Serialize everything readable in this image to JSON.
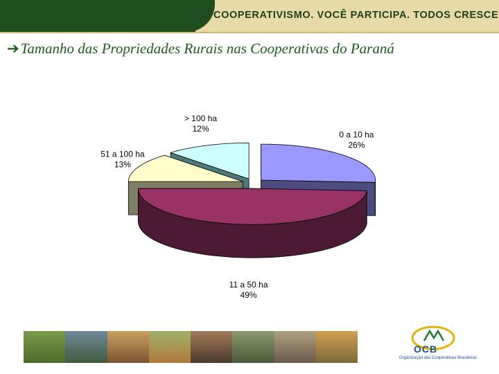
{
  "header": {
    "slogan": "COOPERATIVISMO. VOCÊ PARTICIPA. TODOS CRESCEM."
  },
  "title": {
    "bullet_icon": "arrow-right-icon",
    "text": "Tamanho das Propriedades Rurais nas Cooperativas do Paraná"
  },
  "chart_data": {
    "type": "pie",
    "three_d": true,
    "title": "Tamanho das Propriedades Rurais nas Cooperativas do Paraná",
    "slices": [
      {
        "label": "0 a 10 ha",
        "value": 26,
        "value_label": "26%",
        "color": "#9999ff",
        "side_color": "#4c4c80"
      },
      {
        "label": "11 a 50 ha",
        "value": 49,
        "value_label": "49%",
        "color": "#993366",
        "side_color": "#4d1a33"
      },
      {
        "label": "51 a 100 ha",
        "value": 13,
        "value_label": "13%",
        "color": "#ffffcc",
        "side_color": "#7f7f66"
      },
      {
        "label": "> 100 ha",
        "value": 12,
        "value_label": "12%",
        "color": "#ccffff",
        "side_color": "#4f7a7a"
      }
    ],
    "exploded": true
  },
  "footer": {
    "logo_text": "OCB",
    "logo_subtext": "Organização das Cooperativas Brasileiras"
  }
}
